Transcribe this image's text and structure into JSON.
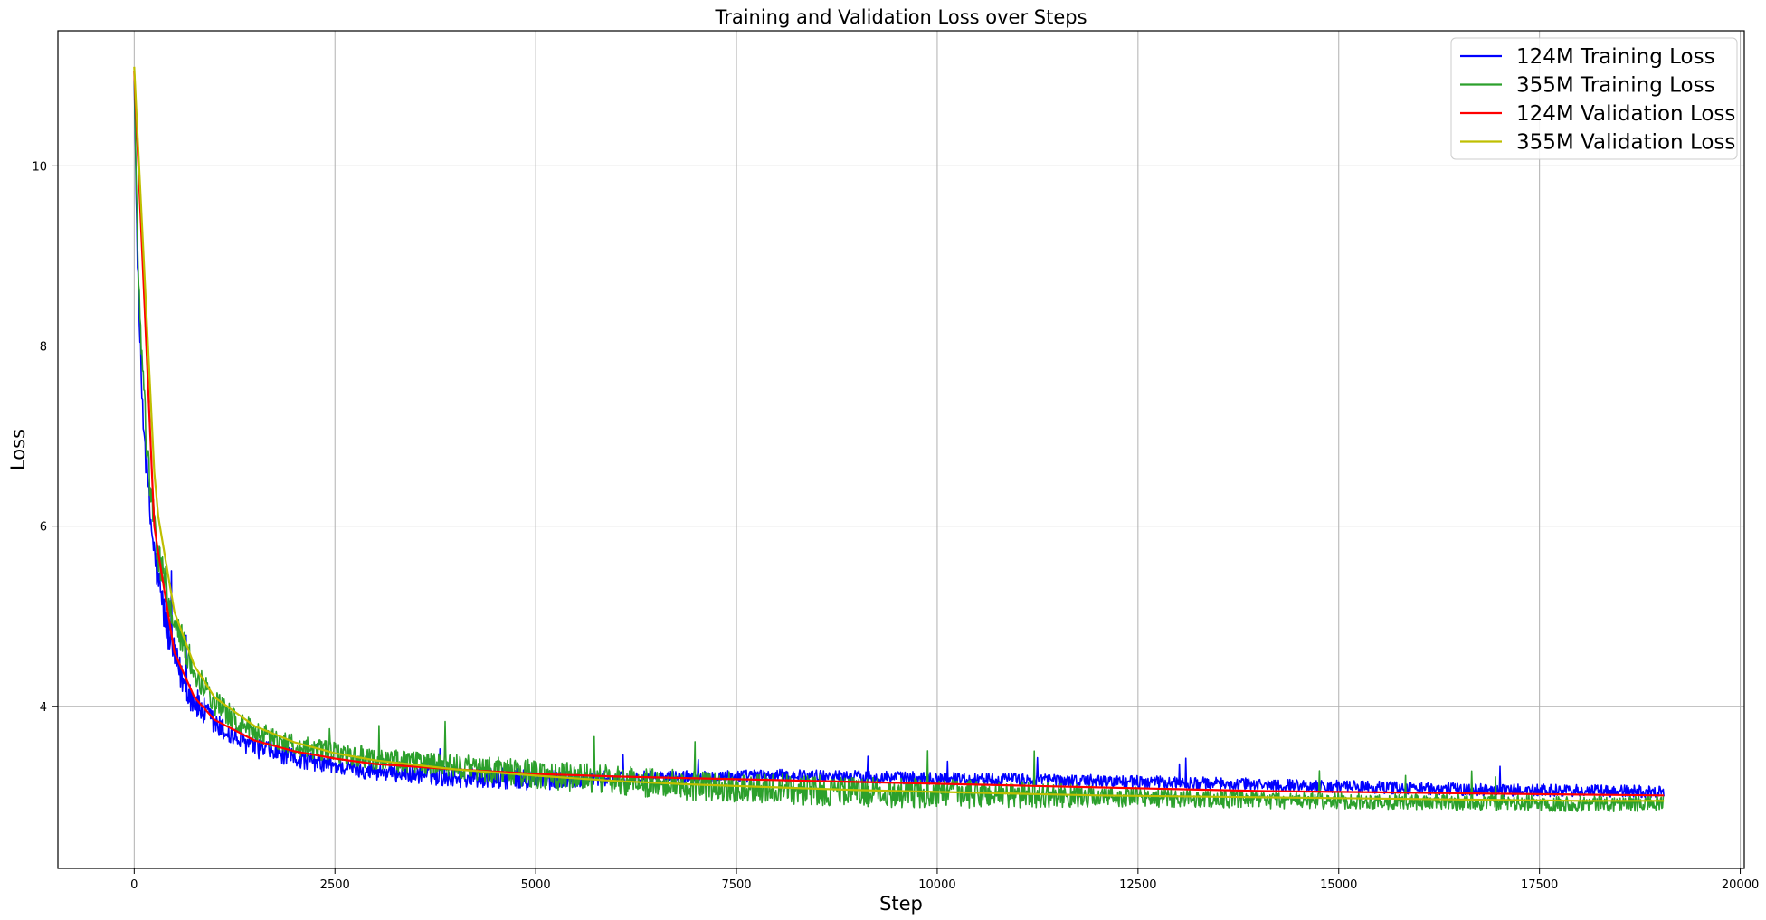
{
  "chart_data": {
    "type": "line",
    "title": "Training and Validation Loss over Steps",
    "xlabel": "Step",
    "ylabel": "Loss",
    "xlim": [
      -950,
      20050
    ],
    "ylim": [
      2.2,
      11.5
    ],
    "xticks": [
      0,
      2500,
      5000,
      7500,
      10000,
      12500,
      15000,
      17500,
      20000
    ],
    "yticks": [
      4,
      6,
      8,
      10
    ],
    "grid": true,
    "legend_position": "top-right",
    "series": [
      {
        "name": "124M Training Loss",
        "color": "#0000ff",
        "style": "noisy",
        "x": [
          0,
          25,
          50,
          100,
          150,
          200,
          250,
          300,
          400,
          500,
          600,
          750,
          1000,
          1250,
          1500,
          2000,
          2500,
          3000,
          4000,
          5000,
          6000,
          7000,
          8000,
          9000,
          10000,
          11000,
          12000,
          13000,
          14000,
          15000,
          16000,
          17000,
          18000,
          19050
        ],
        "y": [
          11.0,
          9.6,
          8.6,
          7.4,
          6.7,
          6.1,
          5.7,
          5.4,
          4.9,
          4.55,
          4.3,
          4.05,
          3.8,
          3.65,
          3.55,
          3.42,
          3.34,
          3.28,
          3.22,
          3.18,
          3.2,
          3.22,
          3.23,
          3.22,
          3.2,
          3.19,
          3.17,
          3.15,
          3.13,
          3.11,
          3.09,
          3.07,
          3.06,
          3.05
        ],
        "noise_amplitude": [
          0.05,
          0.12,
          0.15,
          0.18,
          0.2,
          0.22,
          0.22,
          0.22,
          0.22,
          0.2,
          0.18,
          0.18,
          0.15,
          0.12,
          0.12,
          0.1,
          0.1,
          0.1,
          0.12,
          0.12,
          0.08,
          0.07,
          0.07,
          0.07,
          0.07,
          0.07,
          0.07,
          0.07,
          0.07,
          0.07,
          0.07,
          0.07,
          0.07,
          0.07
        ]
      },
      {
        "name": "355M Training Loss",
        "color": "#2ca02c",
        "style": "noisy",
        "x": [
          0,
          25,
          50,
          100,
          150,
          200,
          250,
          300,
          400,
          500,
          600,
          750,
          1000,
          1250,
          1500,
          2000,
          2500,
          3000,
          4000,
          5000,
          6000,
          7000,
          8000,
          9000,
          10000,
          11000,
          12000,
          13000,
          14000,
          15000,
          16000,
          17000,
          18000,
          19050
        ],
        "y": [
          11.0,
          9.8,
          8.9,
          7.8,
          7.0,
          6.4,
          6.0,
          5.7,
          5.3,
          5.0,
          4.7,
          4.4,
          4.05,
          3.85,
          3.72,
          3.57,
          3.48,
          3.42,
          3.33,
          3.25,
          3.18,
          3.12,
          3.08,
          3.05,
          3.03,
          3.02,
          3.0,
          2.98,
          2.96,
          2.95,
          2.94,
          2.93,
          2.92,
          2.92
        ],
        "noise_amplitude": [
          0.05,
          0.12,
          0.15,
          0.18,
          0.2,
          0.22,
          0.22,
          0.22,
          0.22,
          0.2,
          0.18,
          0.15,
          0.15,
          0.13,
          0.12,
          0.12,
          0.12,
          0.12,
          0.14,
          0.16,
          0.16,
          0.17,
          0.17,
          0.17,
          0.16,
          0.15,
          0.12,
          0.1,
          0.1,
          0.09,
          0.09,
          0.09,
          0.09,
          0.09
        ]
      },
      {
        "name": "124M Validation Loss",
        "color": "#ff0000",
        "style": "smooth",
        "x": [
          0,
          250,
          300,
          500,
          750,
          1000,
          1500,
          2000,
          2500,
          3000,
          4000,
          5000,
          6000,
          7000,
          8000,
          9000,
          10000,
          11000,
          12000,
          13000,
          14000,
          15000,
          16000,
          17000,
          18000,
          19050
        ],
        "y": [
          11.05,
          6.0,
          5.7,
          4.6,
          4.1,
          3.85,
          3.62,
          3.5,
          3.42,
          3.36,
          3.3,
          3.25,
          3.22,
          3.2,
          3.18,
          3.16,
          3.14,
          3.12,
          3.1,
          3.08,
          3.06,
          3.05,
          3.04,
          3.03,
          3.02,
          3.01
        ]
      },
      {
        "name": "355M Validation Loss",
        "color": "#bfbf00",
        "style": "smooth",
        "x": [
          0,
          250,
          300,
          500,
          750,
          1000,
          1500,
          2000,
          2500,
          3000,
          4000,
          5000,
          6000,
          7000,
          8000,
          9000,
          10000,
          11000,
          12000,
          13000,
          14000,
          15000,
          16000,
          17000,
          18000,
          19050
        ],
        "y": [
          11.1,
          6.6,
          6.1,
          5.05,
          4.45,
          4.1,
          3.78,
          3.6,
          3.48,
          3.4,
          3.3,
          3.23,
          3.17,
          3.13,
          3.1,
          3.07,
          3.05,
          3.03,
          3.01,
          3.0,
          2.99,
          2.98,
          2.97,
          2.96,
          2.95,
          2.95
        ]
      }
    ]
  }
}
